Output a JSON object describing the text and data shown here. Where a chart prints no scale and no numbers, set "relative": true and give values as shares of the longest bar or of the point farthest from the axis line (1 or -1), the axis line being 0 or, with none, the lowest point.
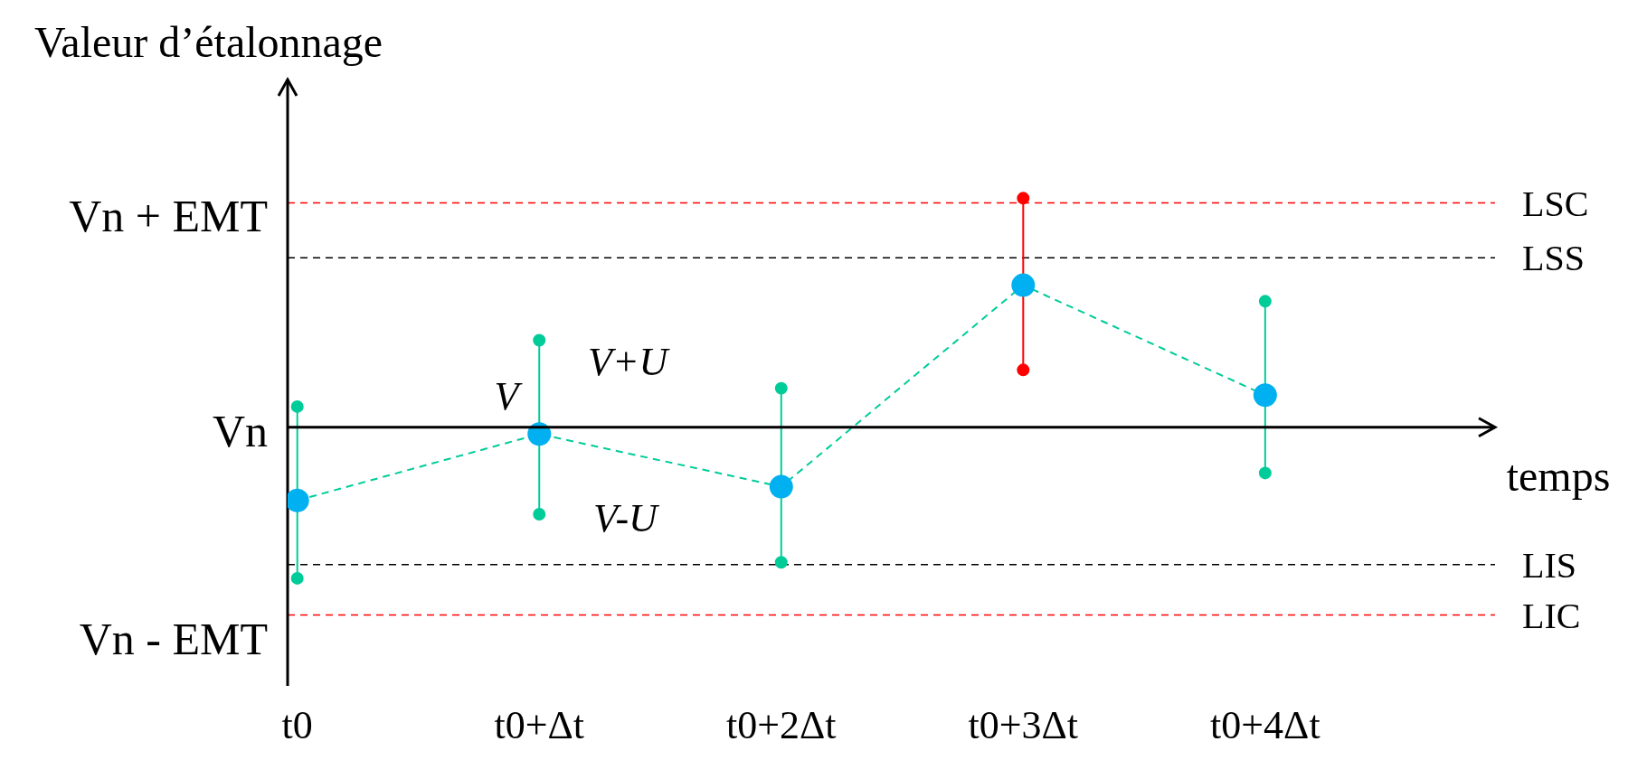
{
  "chart_data": {
    "type": "line",
    "relative": true,
    "xlabel": "temps",
    "grid": false,
    "categories": [
      "t0",
      "t0+Δt",
      "t0+2Δt",
      "t0+3Δt",
      "t0+4Δt"
    ],
    "series": [
      {
        "type": "line",
        "color": "#00cc99",
        "line_style": "dashed",
        "marker": "none",
        "values": [
          -0.32,
          -0.03,
          -0.26,
          0.62,
          0.14
        ]
      },
      {
        "type": "line",
        "color": "#00cc99",
        "line_style": "solid",
        "marker": "circle",
        "x": [
          "t0",
          "t0"
        ],
        "values": [
          -0.66,
          0.09
        ]
      },
      {
        "type": "line",
        "color": "#00cc99",
        "line_style": "solid",
        "marker": "circle",
        "x": [
          "t0+Δt",
          "t0+Δt"
        ],
        "values": [
          -0.38,
          0.38
        ]
      },
      {
        "type": "line",
        "color": "#00cc99",
        "line_style": "solid",
        "marker": "circle",
        "x": [
          "t0+2Δt",
          "t0+2Δt"
        ],
        "values": [
          -0.59,
          0.17
        ]
      },
      {
        "type": "line",
        "color": "#ff0000",
        "line_style": "solid",
        "marker": "circle",
        "x": [
          "t0+3Δt",
          "t0+3Δt"
        ],
        "values": [
          0.25,
          1
        ]
      },
      {
        "type": "line",
        "color": "#00cc99",
        "line_style": "solid",
        "marker": "circle",
        "x": [
          "t0+4Δt",
          "t0+4Δt"
        ],
        "values": [
          -0.2,
          0.55
        ]
      },
      {
        "type": "scatter",
        "color": "#00b0f0",
        "marker": "circle",
        "values": [
          -0.32,
          -0.03,
          -0.26,
          0.62,
          0.14
        ]
      }
    ],
    "ref_lines": [
      {
        "axis": "y",
        "value": 0.98,
        "label": "LSC",
        "color": "#ff0000",
        "line_style": "dashed"
      },
      {
        "axis": "y",
        "value": 0.74,
        "label": "LSS",
        "color": "#000000",
        "line_style": "dashed"
      },
      {
        "axis": "y",
        "value": -0.6,
        "label": "LIS",
        "color": "#000000",
        "line_style": "dashed"
      },
      {
        "axis": "y",
        "value": -0.82,
        "label": "LIC",
        "color": "#ff0000",
        "line_style": "dashed"
      }
    ],
    "annotations": [
      "Valeur d’étalonnage",
      "Vn + EMT",
      "Vn",
      "Vn - EMT",
      "V",
      "V+U",
      "V-U"
    ]
  }
}
